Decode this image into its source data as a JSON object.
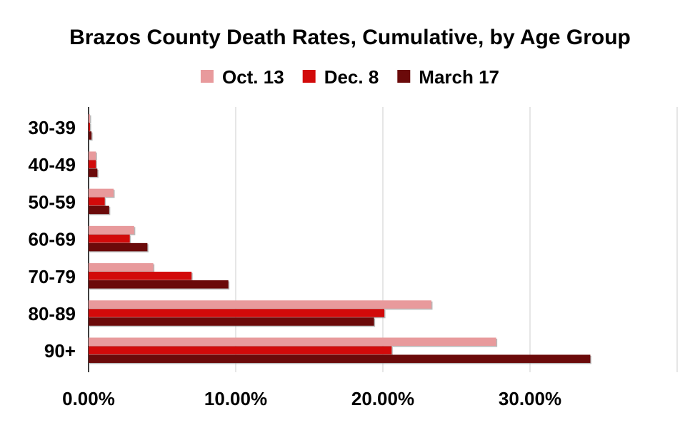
{
  "chart_data": {
    "type": "bar",
    "orientation": "horizontal",
    "title": "Brazos County Death Rates, Cumulative, by Age Group",
    "legend_position": "top",
    "categories": [
      "30-39",
      "40-49",
      "50-59",
      "60-69",
      "70-79",
      "80-89",
      "90+"
    ],
    "series": [
      {
        "name": "Oct. 13",
        "color": "#e89a9c",
        "values": [
          0.1,
          0.5,
          1.7,
          3.1,
          4.4,
          23.3,
          27.7
        ]
      },
      {
        "name": "Dec. 8",
        "color": "#d20a0a",
        "values": [
          0.1,
          0.5,
          1.1,
          2.8,
          7.0,
          20.1,
          20.6
        ]
      },
      {
        "name": "March 17",
        "color": "#6b0a0a",
        "values": [
          0.2,
          0.6,
          1.4,
          4.0,
          9.5,
          19.4,
          34.1
        ]
      }
    ],
    "x_ticks": [
      "0.00%",
      "10.00%",
      "20.00%",
      "30.00%"
    ],
    "xlim": [
      0,
      40
    ],
    "grid": true
  }
}
